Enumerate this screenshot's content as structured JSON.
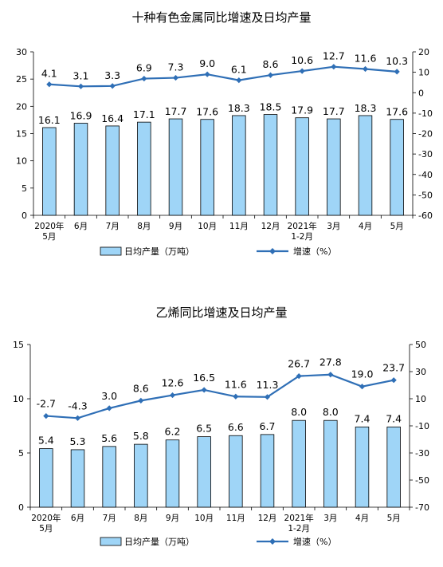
{
  "chart_data": [
    {
      "type": "bar",
      "title": "十种有色金属同比增速及日均产量",
      "categories": [
        [
          "2020年",
          "5月"
        ],
        [
          "6月"
        ],
        [
          "7月"
        ],
        [
          "8月"
        ],
        [
          "9月"
        ],
        [
          "10月"
        ],
        [
          "11月"
        ],
        [
          "12月"
        ],
        [
          "2021年",
          "1-2月"
        ],
        [
          "3月"
        ],
        [
          "4月"
        ],
        [
          "5月"
        ]
      ],
      "series": [
        {
          "name": "日均产量（万吨）",
          "type": "bar",
          "axis": "left",
          "values": [
            16.1,
            16.9,
            16.4,
            17.1,
            17.7,
            17.6,
            18.3,
            18.5,
            17.9,
            17.7,
            18.3,
            17.6
          ]
        },
        {
          "name": "增速（%）",
          "type": "line",
          "axis": "right",
          "values": [
            4.1,
            3.1,
            3.3,
            6.9,
            7.3,
            9.0,
            6.1,
            8.6,
            10.6,
            12.7,
            11.6,
            10.3
          ]
        }
      ],
      "left_axis": {
        "min": 0,
        "max": 30,
        "step": 5,
        "ticks": [
          "0",
          "5",
          "10",
          "15",
          "20",
          "25",
          "30"
        ]
      },
      "right_axis": {
        "min": -60,
        "max": 20,
        "step": 10,
        "ticks": [
          "-60",
          "-50",
          "-40",
          "-30",
          "-20",
          "-10",
          "0",
          "10",
          "20"
        ]
      },
      "value_labels_bar": [
        "16.1",
        "16.9",
        "16.4",
        "17.1",
        "17.7",
        "17.6",
        "18.3",
        "18.5",
        "17.9",
        "17.7",
        "18.3",
        "17.6"
      ],
      "value_labels_line": [
        "4.1",
        "3.1",
        "3.3",
        "6.9",
        "7.3",
        "9.0",
        "6.1",
        "8.6",
        "10.6",
        "12.7",
        "11.6",
        "10.3"
      ],
      "legend": {
        "bar": "日均产量（万吨）",
        "line": "增速（%）",
        "placement": "bottom"
      },
      "colors": {
        "bar": "#9fd5f7",
        "bar_stroke": "#000000",
        "line": "#2f6fb6"
      }
    },
    {
      "type": "bar",
      "title": "乙烯同比增速及日均产量",
      "categories": [
        [
          "2020年",
          "5月"
        ],
        [
          "6月"
        ],
        [
          "7月"
        ],
        [
          "8月"
        ],
        [
          "9月"
        ],
        [
          "10月"
        ],
        [
          "11月"
        ],
        [
          "12月"
        ],
        [
          "2021年",
          "1-2月"
        ],
        [
          "3月"
        ],
        [
          "4月"
        ],
        [
          "5月"
        ]
      ],
      "series": [
        {
          "name": "日均产量（万吨）",
          "type": "bar",
          "axis": "left",
          "values": [
            5.4,
            5.3,
            5.6,
            5.8,
            6.2,
            6.5,
            6.6,
            6.7,
            8.0,
            8.0,
            7.4,
            7.4
          ]
        },
        {
          "name": "增速（%）",
          "type": "line",
          "axis": "right",
          "values": [
            -2.7,
            -4.3,
            3.0,
            8.6,
            12.6,
            16.5,
            11.6,
            11.3,
            26.7,
            27.8,
            19.0,
            23.7
          ]
        }
      ],
      "left_axis": {
        "min": 0,
        "max": 15,
        "step": 5,
        "ticks": [
          "0",
          "5",
          "10",
          "15"
        ]
      },
      "right_axis": {
        "min": -70,
        "max": 50,
        "step": 20,
        "ticks": [
          "-70",
          "-50",
          "-30",
          "-10",
          "10",
          "30",
          "50"
        ]
      },
      "value_labels_bar": [
        "5.4",
        "5.3",
        "5.6",
        "5.8",
        "6.2",
        "6.5",
        "6.6",
        "6.7",
        "8.0",
        "8.0",
        "7.4",
        "7.4"
      ],
      "value_labels_line": [
        "-2.7",
        "-4.3",
        "3.0",
        "8.6",
        "12.6",
        "16.5",
        "11.6",
        "11.3",
        "26.7",
        "27.8",
        "19.0",
        "23.7"
      ],
      "legend": {
        "bar": "日均产量（万吨）",
        "line": "增速（%）",
        "placement": "bottom"
      },
      "colors": {
        "bar": "#9fd5f7",
        "bar_stroke": "#000000",
        "line": "#2f6fb6"
      }
    }
  ]
}
